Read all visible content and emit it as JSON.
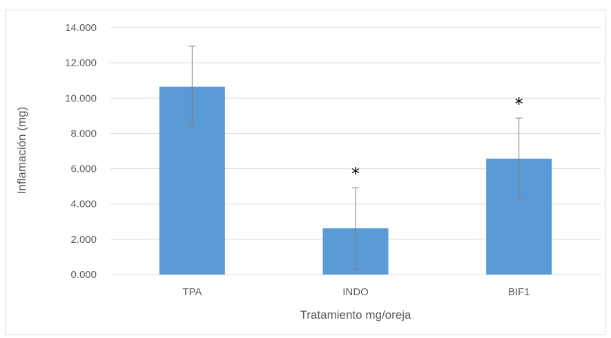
{
  "chart_data": {
    "type": "bar",
    "categories": [
      "TPA",
      "INDO",
      "BIF1"
    ],
    "values": [
      10.65,
      2.62,
      6.57
    ],
    "error": [
      2.3,
      2.3,
      2.3
    ],
    "annotations": [
      "",
      "*",
      "*"
    ],
    "xlabel": "Tratamiento mg/oreja",
    "ylabel": "Inflamación (mg)",
    "ylim": [
      0,
      14
    ],
    "yticks": [
      0,
      2,
      4,
      6,
      8,
      10,
      12,
      14
    ],
    "ytick_labels": [
      "0.000",
      "2.000",
      "4.000",
      "6.000",
      "8.000",
      "10.000",
      "12.000",
      "14.000"
    ],
    "grid": true,
    "legend": "none",
    "colors": {
      "bar": "#5b9bd5",
      "grid": "#d9d9d9",
      "error_bar": "#7f7f7f",
      "text": "#595959"
    }
  }
}
